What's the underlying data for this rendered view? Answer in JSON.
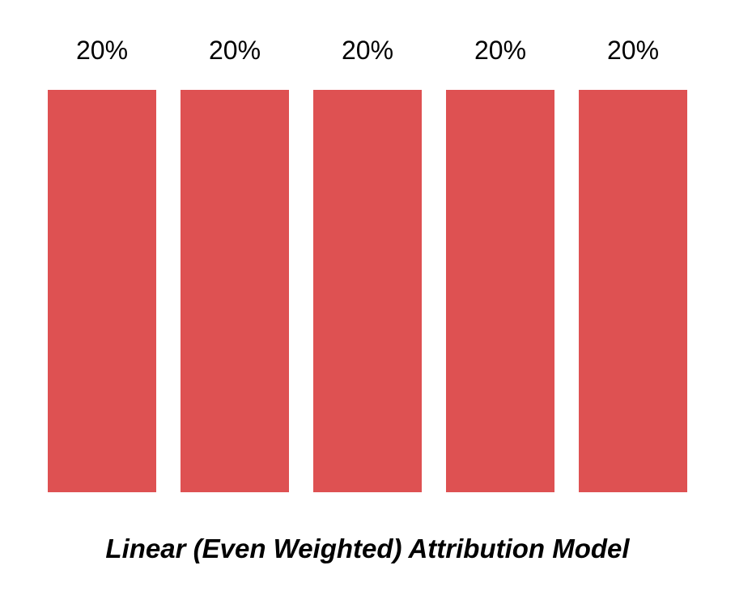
{
  "chart_data": {
    "type": "bar",
    "title": "Linear (Even Weighted) Attribution Model",
    "values": [
      20,
      20,
      20,
      20,
      20
    ],
    "value_labels": [
      "20%",
      "20%",
      "20%",
      "20%",
      "20%"
    ],
    "ylim": [
      0,
      20
    ],
    "xlabel": "",
    "ylabel": "",
    "grid": false,
    "legend": false,
    "bar_color": "#DE5152",
    "label_color": "#000000",
    "title_color": "#000000",
    "background_color": "#FFFFFF"
  }
}
